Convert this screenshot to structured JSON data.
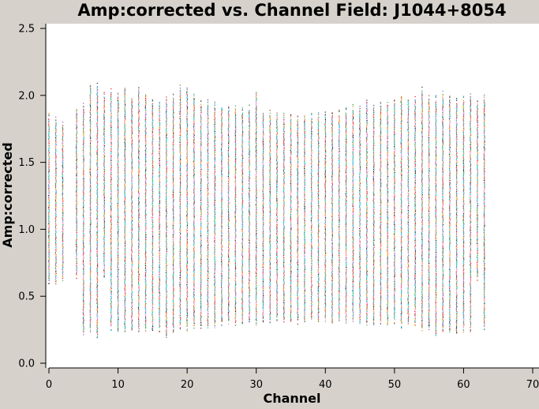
{
  "chart_data": {
    "type": "scatter",
    "title": "Amp:corrected vs. Channel Field: J1044+8054",
    "xlabel": "Channel",
    "ylabel": "Amp:corrected",
    "xlim": [
      0,
      70
    ],
    "ylim": [
      0,
      2.5
    ],
    "x_ticks": [
      0,
      10,
      20,
      30,
      40,
      50,
      60,
      70
    ],
    "y_ticks": [
      0.0,
      0.5,
      1.0,
      1.5,
      2.0,
      2.5
    ],
    "x_tick_labels": [
      "0",
      "10",
      "20",
      "30",
      "40",
      "50",
      "60",
      "70"
    ],
    "y_tick_labels": [
      "0.0",
      "0.5",
      "1.0",
      "1.5",
      "2.0",
      "2.5"
    ],
    "grid": false,
    "legend": "none",
    "point_colors": [
      "#e41a1c",
      "#377eb8",
      "#4daf4a",
      "#984ea3",
      "#ff7f00",
      "#222222",
      "#a65628",
      "#f781bf",
      "#1b9e77",
      "#00bcd4"
    ],
    "series": [
      {
        "x": [
          0,
          1,
          2,
          4,
          5,
          6,
          7,
          8,
          9,
          10,
          11,
          12,
          13,
          14,
          15,
          16,
          17,
          18,
          19,
          20,
          21,
          22,
          23,
          24,
          25,
          26,
          27,
          28,
          29,
          30,
          31,
          32,
          33,
          34,
          35,
          36,
          37,
          38,
          39,
          40,
          41,
          42,
          43,
          44,
          45,
          46,
          47,
          48,
          49,
          50,
          51,
          52,
          53,
          54,
          55,
          56,
          57,
          58,
          59,
          60,
          61,
          62,
          63
        ],
        "y_min": [
          0.62,
          0.62,
          0.65,
          0.67,
          0.25,
          0.27,
          0.22,
          0.67,
          0.28,
          0.26,
          0.27,
          0.27,
          0.26,
          0.28,
          0.26,
          0.27,
          0.22,
          0.27,
          0.29,
          0.28,
          0.3,
          0.29,
          0.3,
          0.3,
          0.32,
          0.33,
          0.31,
          0.32,
          0.33,
          0.32,
          0.34,
          0.33,
          0.35,
          0.34,
          0.33,
          0.33,
          0.34,
          0.35,
          0.34,
          0.35,
          0.32,
          0.34,
          0.33,
          0.34,
          0.33,
          0.32,
          0.32,
          0.33,
          0.32,
          0.33,
          0.3,
          0.32,
          0.31,
          0.28,
          0.29,
          0.24,
          0.27,
          0.26,
          0.24,
          0.27,
          0.27,
          0.65,
          0.28
        ],
        "y_max": [
          1.84,
          1.81,
          1.77,
          1.88,
          1.91,
          2.07,
          2.06,
          2.0,
          2.02,
          2.0,
          2.04,
          1.96,
          2.04,
          1.99,
          1.95,
          1.94,
          1.96,
          1.98,
          2.05,
          2.04,
          1.98,
          1.93,
          1.94,
          1.92,
          1.9,
          1.9,
          1.89,
          1.88,
          1.9,
          2.0,
          1.86,
          1.86,
          1.85,
          1.84,
          1.83,
          1.82,
          1.83,
          1.84,
          1.85,
          1.85,
          1.86,
          1.86,
          1.88,
          1.9,
          1.9,
          1.94,
          1.92,
          1.93,
          1.92,
          1.95,
          1.98,
          1.96,
          1.96,
          2.03,
          1.97,
          1.97,
          2.0,
          1.97,
          1.95,
          1.96,
          1.98,
          1.94,
          1.98
        ]
      }
    ]
  }
}
